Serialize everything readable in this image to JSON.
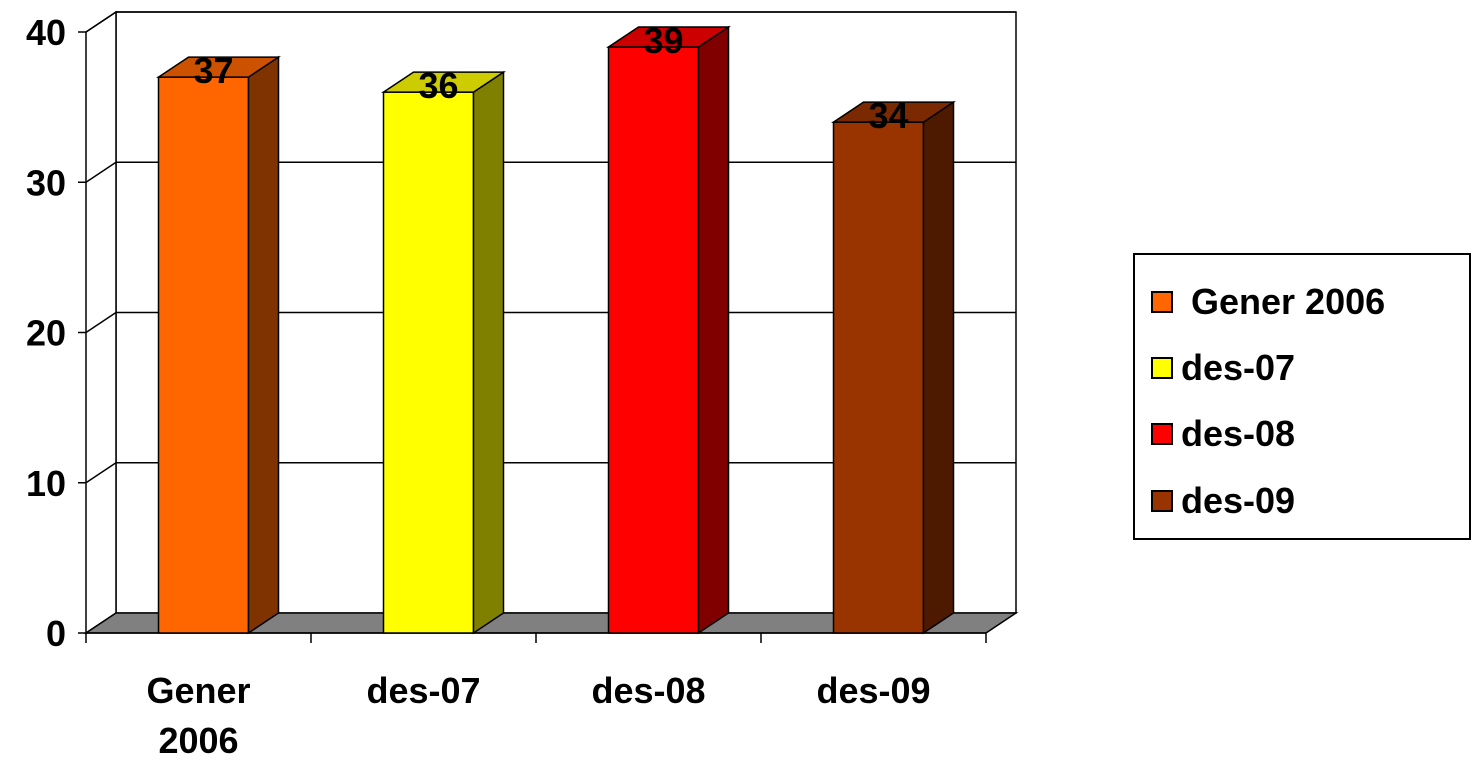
{
  "chart_data": {
    "type": "bar",
    "style": "3d-clustered-column",
    "categories": [
      "Gener 2006",
      "des-07",
      "des-08",
      "des-09"
    ],
    "category_tick_labels": [
      [
        "Gener",
        "2006"
      ],
      [
        "des-07"
      ],
      [
        "des-08"
      ],
      [
        "des-09"
      ]
    ],
    "values": [
      37,
      36,
      39,
      34
    ],
    "data_labels": [
      "37",
      "36",
      "39",
      "34"
    ],
    "ylim": [
      0,
      40
    ],
    "y_ticks": [
      0,
      10,
      20,
      30,
      40
    ],
    "title": "",
    "xlabel": "",
    "ylabel": "",
    "grid": true,
    "legend_position": "right",
    "series_colors": [
      "#FF6600",
      "#FFFF00",
      "#FF0000",
      "#993300"
    ],
    "side_colors": [
      "#7F3300",
      "#808000",
      "#800000",
      "#4D1A00"
    ],
    "floor_color": "#808080"
  },
  "legend": {
    "items": [
      {
        "label": " Gener 2006",
        "color": "#FF6600"
      },
      {
        "label": "des-07",
        "color": "#FFFF00"
      },
      {
        "label": "des-08",
        "color": "#FF0000"
      },
      {
        "label": "des-09",
        "color": "#993300"
      }
    ]
  }
}
